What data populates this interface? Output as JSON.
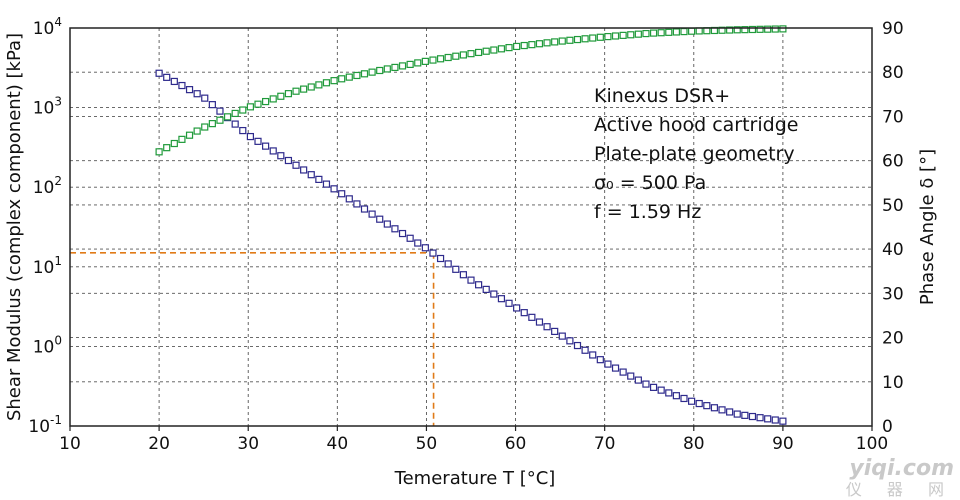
{
  "chart_data": {
    "type": "scatter",
    "xlabel": "Temerature T [°C]",
    "ylabel": "Shear Modulus (complex component) [kPa]",
    "y2label": "Phase Angle δ [°]",
    "xlim": [
      10,
      100
    ],
    "ylim_log10": [
      -1,
      4
    ],
    "y2lim": [
      0,
      90
    ],
    "x_ticks": [
      "10",
      "20",
      "30",
      "40",
      "50",
      "60",
      "70",
      "80",
      "90",
      "100"
    ],
    "y_ticks": [
      {
        "base": "10",
        "exp": "-1"
      },
      {
        "base": "10",
        "exp": "0"
      },
      {
        "base": "10",
        "exp": "1"
      },
      {
        "base": "10",
        "exp": "2"
      },
      {
        "base": "10",
        "exp": "3"
      },
      {
        "base": "10",
        "exp": "4"
      }
    ],
    "y2_ticks": [
      "0",
      "10",
      "20",
      "30",
      "40",
      "50",
      "60",
      "70",
      "80",
      "90"
    ],
    "grid": true,
    "series": [
      {
        "name": "Shear modulus G*",
        "axis": "left-log",
        "color": "#2e2a8c",
        "marker": "square",
        "x": [
          20,
          25,
          30,
          35,
          40,
          45,
          50,
          55,
          60,
          65,
          70,
          75,
          80,
          85,
          90
        ],
        "y": [
          2700,
          1350,
          450,
          200,
          90,
          38,
          17,
          6.8,
          3.1,
          1.4,
          0.63,
          0.32,
          0.2,
          0.14,
          0.115
        ]
      },
      {
        "name": "Phase angle δ",
        "axis": "right",
        "color": "#1f9a3a",
        "marker": "square",
        "x": [
          20,
          25,
          30,
          35,
          40,
          45,
          50,
          55,
          60,
          65,
          70,
          75,
          80,
          85,
          90
        ],
        "y": [
          62,
          67.5,
          72,
          75.5,
          78.3,
          80.5,
          82.5,
          84.2,
          85.8,
          87,
          88,
          88.8,
          89.3,
          89.6,
          89.8
        ]
      }
    ],
    "reference_line": {
      "x": 50.8,
      "y": 15,
      "color": "#e07b18",
      "style": "dashed"
    },
    "annotation_lines": [
      "Kinexus DSR+",
      "Active hood cartridge",
      "Plate-plate geometry",
      "σ₀ = 500 Pa",
      "f = 1.59 Hz"
    ]
  },
  "watermark": {
    "line1": "yiqi.com",
    "line2": "仪 器 网"
  }
}
